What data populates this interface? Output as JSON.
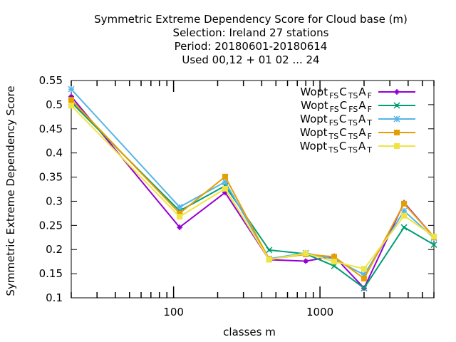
{
  "chart_data": {
    "type": "line",
    "title_lines": [
      "Symmetric Extreme Dependency Score  for Cloud base (m)",
      "Selection: Ireland     27 stations",
      "Period: 20180601-20180614",
      "Used  00,12  + 01 02 ... 24"
    ],
    "xlabel": "classes m",
    "ylabel": "Symmetric Extreme Dependency Score",
    "x_scale": "log",
    "xlim": [
      20,
      6000
    ],
    "ylim": [
      0.1,
      0.55
    ],
    "x_tick_labels": [
      {
        "value": 100,
        "label": "100"
      },
      {
        "value": 1000,
        "label": "1000"
      }
    ],
    "y_ticks": [
      0.1,
      0.15,
      0.2,
      0.25,
      0.3,
      0.35,
      0.4,
      0.45,
      0.5,
      0.55
    ],
    "y_tick_labels": [
      "0.1",
      "0.15",
      "0.2",
      "0.25",
      "0.3",
      "0.35",
      "0.4",
      "0.45",
      "0.5",
      "0.55"
    ],
    "grid": false,
    "legend_position": "top-right",
    "x": [
      20,
      110,
      225,
      450,
      800,
      1250,
      2000,
      3750,
      6000
    ],
    "series": [
      {
        "name_parts": [
          "Wopt",
          "FS",
          "C",
          "TS",
          "A",
          "F"
        ],
        "color": "#9400d3",
        "marker": "plus",
        "values": [
          0.517,
          0.246,
          0.318,
          0.179,
          0.176,
          0.186,
          0.12,
          0.297,
          0.226
        ]
      },
      {
        "name_parts": [
          "Wopt",
          "FS",
          "C",
          "FS",
          "A",
          "F"
        ],
        "color": "#009e73",
        "marker": "cross",
        "values": [
          0.505,
          0.28,
          0.332,
          0.199,
          0.191,
          0.166,
          0.12,
          0.246,
          0.21
        ]
      },
      {
        "name_parts": [
          "Wopt",
          "FS",
          "C",
          "TS",
          "A",
          "T"
        ],
        "color": "#56b4e9",
        "marker": "star",
        "values": [
          0.532,
          0.288,
          0.34,
          0.181,
          0.193,
          0.18,
          0.148,
          0.28,
          0.224
        ]
      },
      {
        "name_parts": [
          "Wopt",
          "TS",
          "C",
          "TS",
          "A",
          "F"
        ],
        "color": "#e69f00",
        "marker": "square",
        "values": [
          0.51,
          0.275,
          0.351,
          0.18,
          0.19,
          0.185,
          0.14,
          0.295,
          0.226
        ]
      },
      {
        "name_parts": [
          "Wopt",
          "TS",
          "C",
          "TS",
          "A",
          "T"
        ],
        "color": "#f0e442",
        "marker": "square",
        "values": [
          0.498,
          0.268,
          0.326,
          0.179,
          0.192,
          0.175,
          0.16,
          0.27,
          0.227
        ]
      }
    ]
  }
}
